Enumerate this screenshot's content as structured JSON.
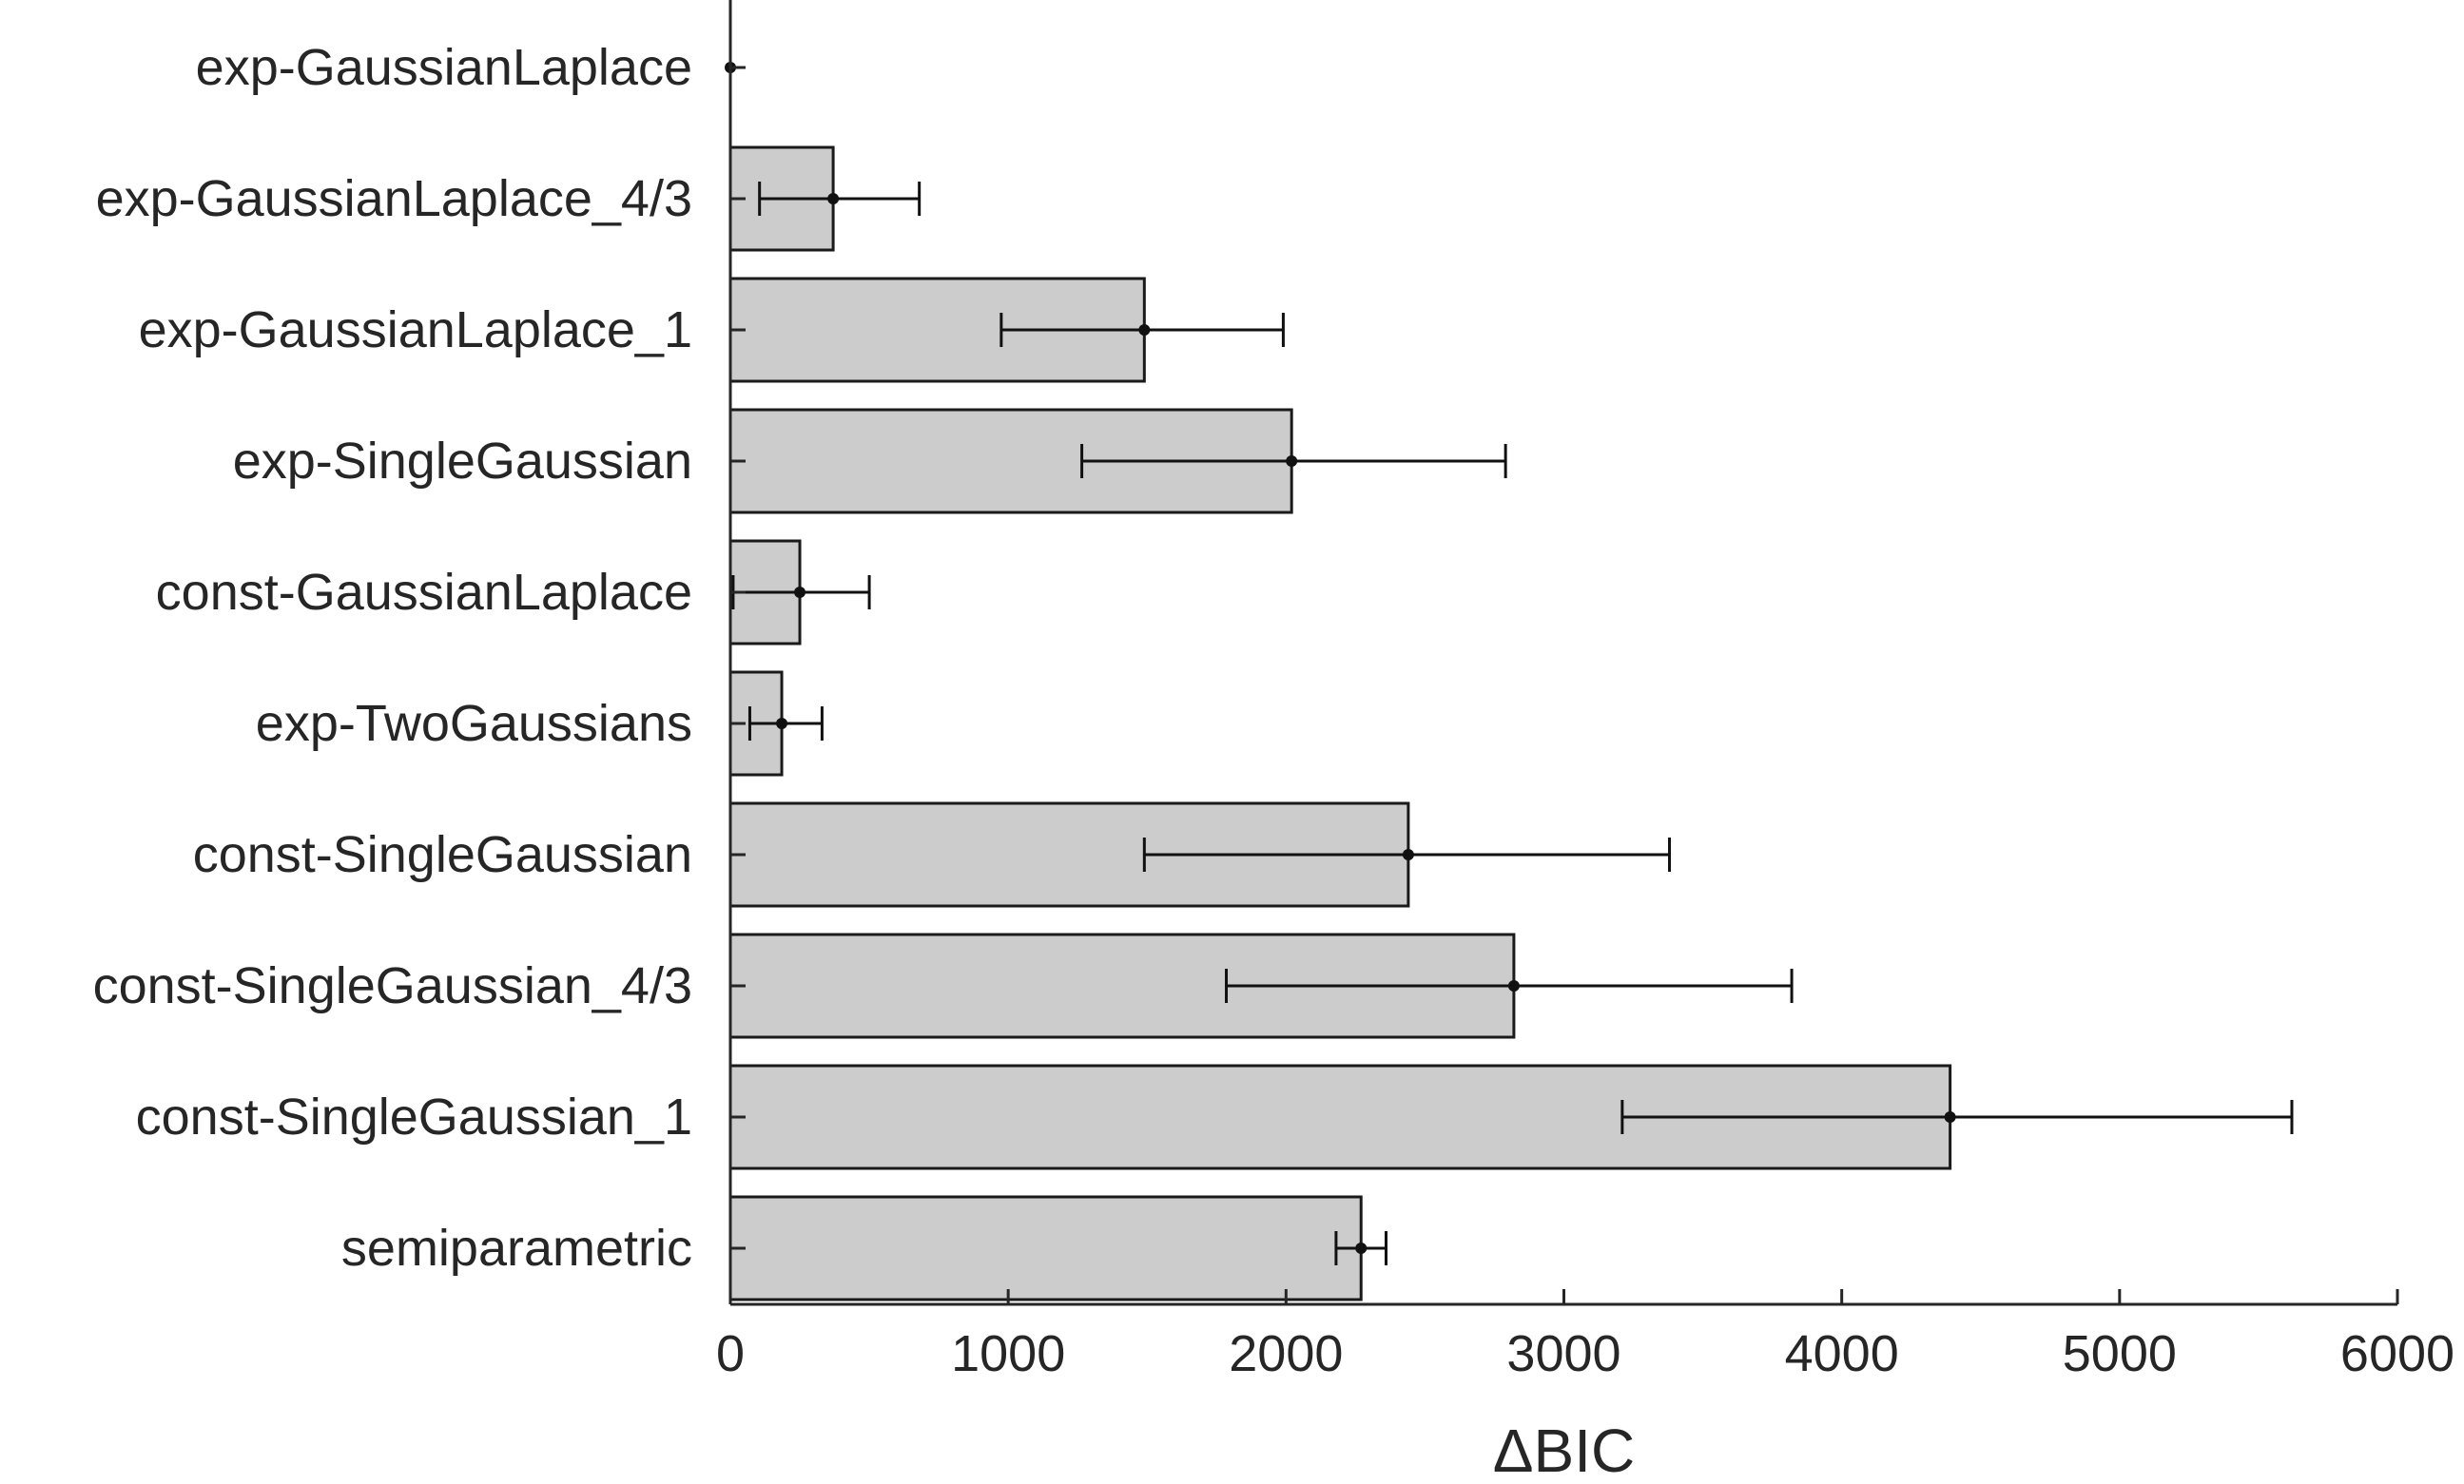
{
  "chart_data": {
    "type": "bar",
    "orientation": "horizontal",
    "categories": [
      "exp-GaussianLaplace",
      "exp-GaussianLaplace_4/3",
      "exp-GaussianLaplace_1",
      "exp-SingleGaussian",
      "const-GaussianLaplace",
      "exp-TwoGaussians",
      "const-SingleGaussian",
      "const-SingleGaussian_4/3",
      "const-SingleGaussian_1",
      "semiparametric"
    ],
    "values": [
      0,
      370,
      1490,
      2020,
      250,
      185,
      2440,
      2820,
      4390,
      2270
    ],
    "error_low": [
      0,
      105,
      975,
      1265,
      10,
      70,
      1490,
      1785,
      3210,
      2180
    ],
    "error_high": [
      0,
      680,
      1990,
      2790,
      500,
      330,
      3380,
      3820,
      5620,
      2360
    ],
    "xlabel": "ΔBIC",
    "ylabel": "",
    "title": "",
    "xlim": [
      0,
      6000
    ],
    "xticks": [
      "0",
      "1000",
      "2000",
      "3000",
      "4000",
      "5000",
      "6000"
    ],
    "bar_color": "#cccccc",
    "edge_color": "#1a1a1a",
    "grid": false,
    "legend": "none"
  }
}
